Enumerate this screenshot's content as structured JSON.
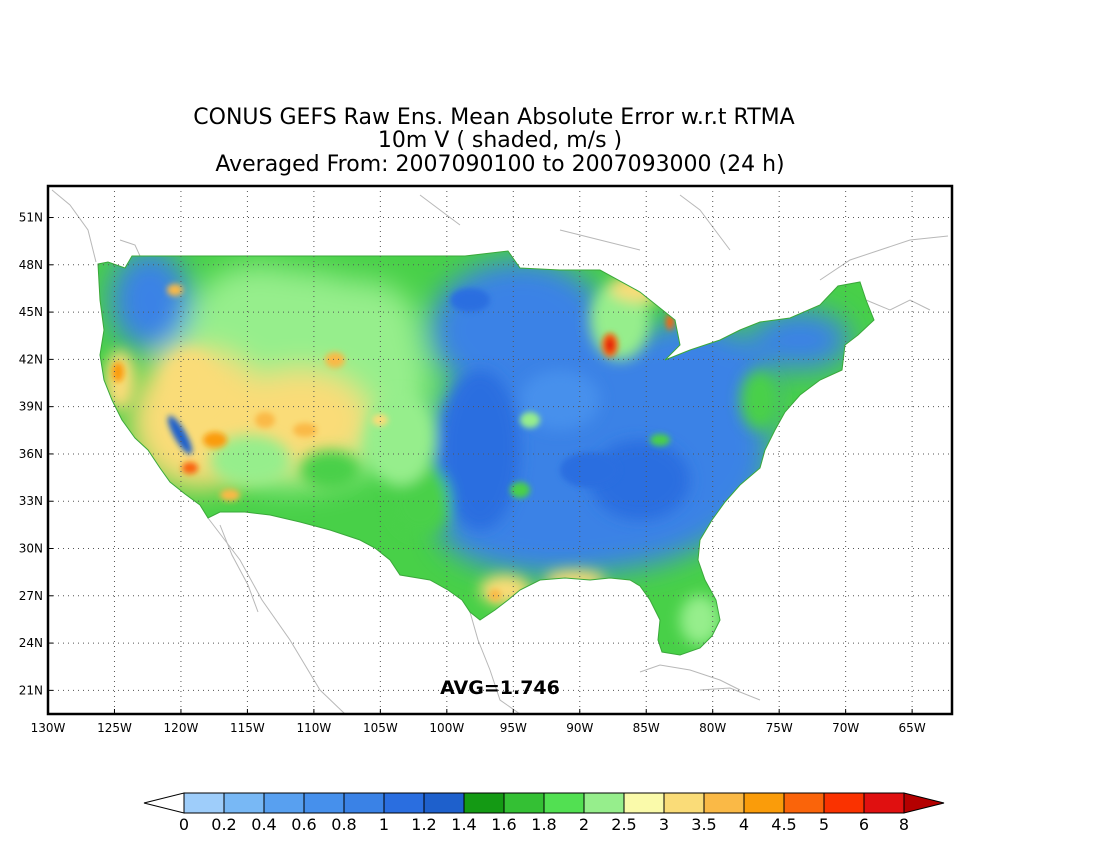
{
  "title": {
    "line1": "CONUS GEFS Raw Ens. Mean Absolute Error w.r.t RTMA",
    "line2": "10m V ( shaded, m/s )",
    "line3": "Averaged From: 2007090100 to 2007093000 (24 h)"
  },
  "map": {
    "lon_range": [
      -130,
      -62
    ],
    "lat_range": [
      19.5,
      53
    ],
    "lat_ticks": [
      {
        "value": 51,
        "label": "51N"
      },
      {
        "value": 48,
        "label": "48N"
      },
      {
        "value": 45,
        "label": "45N"
      },
      {
        "value": 42,
        "label": "42N"
      },
      {
        "value": 39,
        "label": "39N"
      },
      {
        "value": 36,
        "label": "36N"
      },
      {
        "value": 33,
        "label": "33N"
      },
      {
        "value": 30,
        "label": "30N"
      },
      {
        "value": 27,
        "label": "27N"
      },
      {
        "value": 24,
        "label": "24N"
      },
      {
        "value": 21,
        "label": "21N"
      }
    ],
    "lon_ticks": [
      {
        "value": -130,
        "label": "130W"
      },
      {
        "value": -125,
        "label": "125W"
      },
      {
        "value": -120,
        "label": "120W"
      },
      {
        "value": -115,
        "label": "115W"
      },
      {
        "value": -110,
        "label": "110W"
      },
      {
        "value": -105,
        "label": "105W"
      },
      {
        "value": -100,
        "label": "100W"
      },
      {
        "value": -95,
        "label": "95W"
      },
      {
        "value": -90,
        "label": "90W"
      },
      {
        "value": -85,
        "label": "85W"
      },
      {
        "value": -80,
        "label": "80W"
      },
      {
        "value": -75,
        "label": "75W"
      },
      {
        "value": -70,
        "label": "70W"
      },
      {
        "value": -65,
        "label": "65W"
      }
    ],
    "grid": true,
    "annotation": "AVG=1.746"
  },
  "colorbar": {
    "labels": [
      "0",
      "0.2",
      "0.4",
      "0.6",
      "0.8",
      "1",
      "1.2",
      "1.4",
      "1.6",
      "1.8",
      "2",
      "2.5",
      "3",
      "3.5",
      "4",
      "4.5",
      "5",
      "6",
      "8"
    ],
    "colors": [
      "#ffffff",
      "#9ecdfa",
      "#78b8f5",
      "#58a0f0",
      "#4690ec",
      "#3a82e6",
      "#2a6ee0",
      "#1e60cc",
      "#149a14",
      "#34c034",
      "#52e052",
      "#96ee8c",
      "#fafaaa",
      "#fadc78",
      "#fab946",
      "#fa9c0a",
      "#fa640a",
      "#fa3200",
      "#e01010",
      "#b40000"
    ]
  }
}
